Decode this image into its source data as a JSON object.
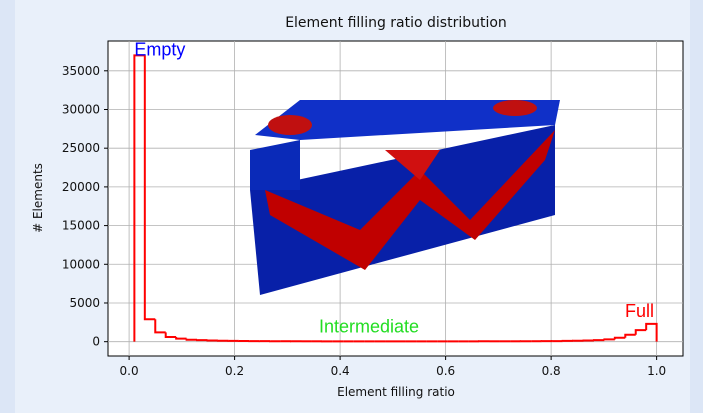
{
  "chart_data": {
    "type": "histogram",
    "title": "Element filling ratio distribution",
    "xlabel": "Element filling ratio",
    "ylabel": "# Elements",
    "bins": [
      0.01,
      0.0298,
      0.0496,
      0.0694,
      0.0892,
      0.109,
      0.1288,
      0.1486,
      0.1684,
      0.1882,
      0.208,
      0.2278,
      0.2476,
      0.2674,
      0.2872,
      0.307,
      0.3268,
      0.3466,
      0.3664,
      0.3862,
      0.406,
      0.4258,
      0.4456,
      0.4654,
      0.4852,
      0.505,
      0.5248,
      0.5446,
      0.5644,
      0.5842,
      0.604,
      0.6238,
      0.6436,
      0.6634,
      0.6832,
      0.703,
      0.7228,
      0.7426,
      0.7624,
      0.7822,
      0.802,
      0.8218,
      0.8416,
      0.8614,
      0.8812,
      0.901,
      0.9208,
      0.9406,
      0.9604,
      0.9802,
      1.0
    ],
    "values": [
      37000,
      2900,
      1200,
      600,
      400,
      250,
      200,
      150,
      120,
      100,
      90,
      80,
      70,
      60,
      60,
      50,
      50,
      50,
      40,
      40,
      40,
      40,
      40,
      40,
      40,
      40,
      40,
      40,
      40,
      40,
      40,
      40,
      40,
      50,
      50,
      50,
      50,
      60,
      60,
      70,
      80,
      100,
      120,
      150,
      200,
      300,
      500,
      900,
      1500,
      2300
    ],
    "color": "#ff0000",
    "xlim": [
      -0.04,
      1.05
    ],
    "ylim": [
      -1850,
      38850
    ],
    "xticks": [
      {
        "value": 0,
        "label": "0.0"
      },
      0.2,
      0.4,
      0.6,
      0.8,
      {
        "value": 1,
        "label": "1.0"
      }
    ],
    "yticks": [
      0,
      5000,
      10000,
      15000,
      20000,
      25000,
      30000,
      35000
    ],
    "grid": true,
    "annotations": [
      {
        "text": "Empty",
        "color": "#0000ff",
        "x": 0.01,
        "y": 37000
      },
      {
        "text": "Intermediate",
        "color": "#22dd22",
        "x": 0.36,
        "y": 1200
      },
      {
        "text": "Full",
        "color": "#ff0000",
        "x": 0.94,
        "y": 3200
      }
    ]
  }
}
